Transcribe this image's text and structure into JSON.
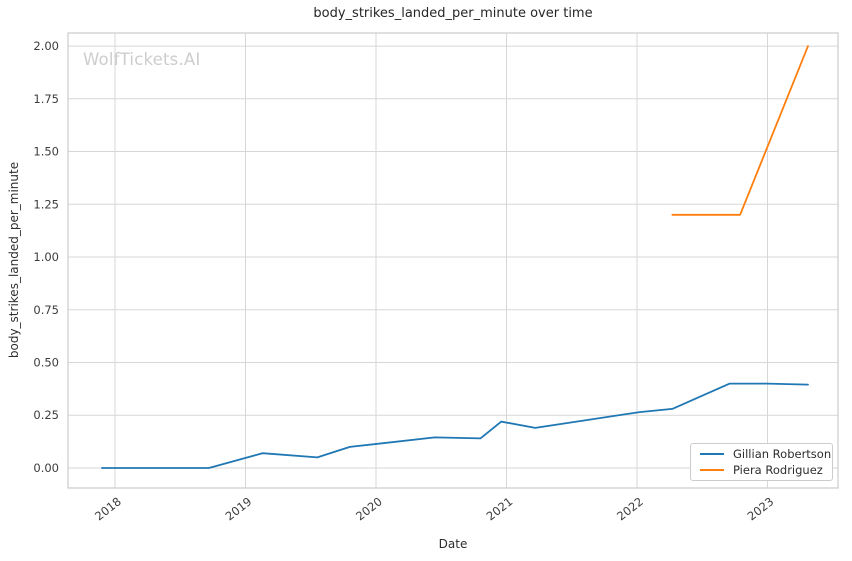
{
  "watermark": {
    "text": "WolfTickets.AI",
    "color": "#cdcdcd"
  },
  "chart_data": {
    "type": "line",
    "title": "body_strikes_landed_per_minute over time",
    "xlabel": "Date",
    "ylabel": "body_strikes_landed_per_minute",
    "grid": true,
    "legend_position": "lower right",
    "xlim": [
      2017.64,
      2023.54
    ],
    "ylim": [
      -0.095,
      2.062
    ],
    "xticks": {
      "values": [
        2018,
        2019,
        2020,
        2021,
        2022,
        2023
      ],
      "labels": [
        "2018",
        "2019",
        "2020",
        "2021",
        "2022",
        "2023"
      ]
    },
    "yticks": {
      "values": [
        0,
        0.25,
        0.5,
        0.75,
        1.0,
        1.25,
        1.5,
        1.75,
        2.0
      ],
      "labels": [
        "0.00",
        "0.25",
        "0.50",
        "0.75",
        "1.00",
        "1.25",
        "1.50",
        "1.75",
        "2.00"
      ]
    },
    "series": [
      {
        "name": "Gillian Robertson",
        "color": "#1f77b4",
        "points": [
          [
            2017.9,
            0.0
          ],
          [
            2018.3,
            0.0
          ],
          [
            2018.72,
            0.0
          ],
          [
            2019.13,
            0.07
          ],
          [
            2019.55,
            0.05
          ],
          [
            2019.8,
            0.1
          ],
          [
            2020.45,
            0.145
          ],
          [
            2020.8,
            0.14
          ],
          [
            2020.96,
            0.22
          ],
          [
            2021.22,
            0.19
          ],
          [
            2022.02,
            0.265
          ],
          [
            2022.27,
            0.28
          ],
          [
            2022.71,
            0.4
          ],
          [
            2023.0,
            0.4
          ],
          [
            2023.31,
            0.395
          ]
        ]
      },
      {
        "name": "Piera Rodriguez",
        "color": "#ff7f0e",
        "points": [
          [
            2022.27,
            1.2
          ],
          [
            2022.79,
            1.2
          ],
          [
            2023.31,
            2.0
          ]
        ]
      }
    ],
    "colors": {
      "grid": "#d7d7d7",
      "spine": "#cbcbcb",
      "title_text": "#262626",
      "tick_text": "#3d3d3d",
      "axis_label_text": "#2e2e2e",
      "legend_border": "#cccccc"
    }
  }
}
